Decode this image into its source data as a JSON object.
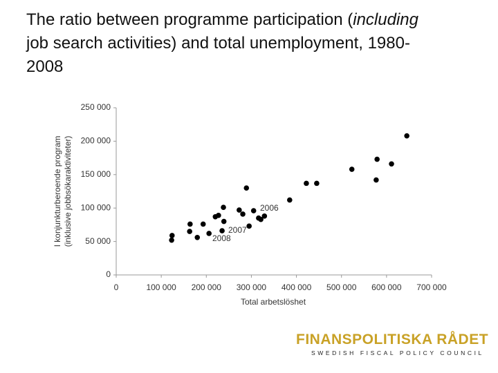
{
  "slide": {
    "title": [
      "The ratio between programme participation (",
      "including",
      " job search activities) and total unemployment, 1980-2008"
    ],
    "logo": {
      "name": "FINANSPOLITISKA RÅDET",
      "tagline": "SWEDISH FISCAL POLICY COUNCIL"
    }
  },
  "chart_data": {
    "type": "scatter",
    "x_label": "Total arbetslöshet",
    "y_label": [
      "I konjunkturberoende program",
      "(inklusive jobbsökaraktiviteter)"
    ],
    "x": [
      124000,
      123000,
      163000,
      164000,
      180000,
      193000,
      206000,
      220000,
      227000,
      238000,
      239000,
      235000,
      273000,
      281000,
      289000,
      295000,
      305000,
      316000,
      321000,
      329000,
      385000,
      422000,
      445000,
      523000,
      579000,
      577000,
      611000,
      645000
    ],
    "values": [
      59000,
      52000,
      65000,
      76000,
      56000,
      76000,
      62000,
      87000,
      89000,
      101000,
      80000,
      66000,
      97000,
      91000,
      130000,
      73000,
      96000,
      85000,
      83000,
      88000,
      112000,
      137000,
      137000,
      158000,
      173000,
      142000,
      166000,
      208000
    ],
    "color": "#000000",
    "annotations": [
      "2006",
      "2007",
      "2008"
    ],
    "xlim": [
      0,
      700000
    ],
    "xticks": [
      0,
      {
        "value": 100000,
        "label": "100 000"
      },
      {
        "value": 200000,
        "label": "200 000"
      },
      {
        "value": 300000,
        "label": "300 000"
      },
      {
        "value": 400000,
        "label": "400 000"
      },
      {
        "value": 500000,
        "label": "500 000"
      },
      {
        "value": 600000,
        "label": "600 000"
      },
      {
        "value": 700000,
        "label": "700 000"
      }
    ],
    "ylim": [
      0,
      250000
    ],
    "yticks": [
      0,
      {
        "value": 50000,
        "label": "50 000"
      },
      {
        "value": 100000,
        "label": "100 000"
      },
      {
        "value": 150000,
        "label": "150 000"
      },
      {
        "value": 200000,
        "label": "200 000"
      },
      {
        "value": 250000,
        "label": "250 000"
      }
    ],
    "grid": false
  }
}
